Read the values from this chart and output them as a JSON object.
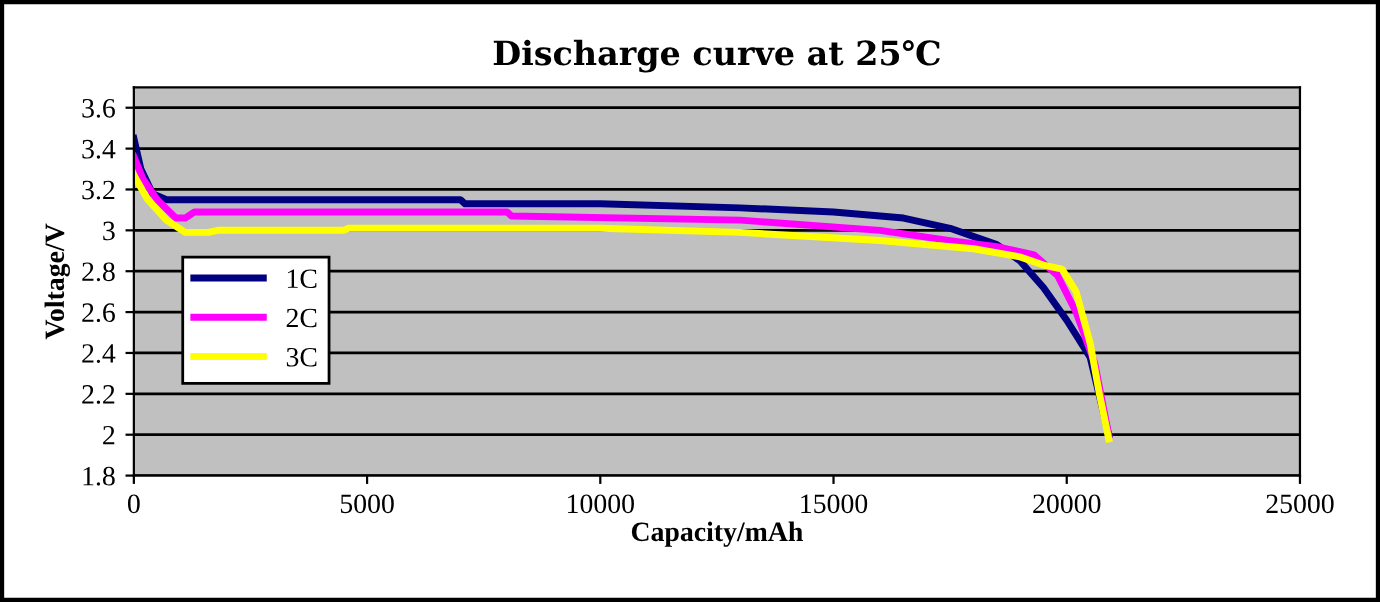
{
  "chart_data": {
    "type": "line",
    "title": "Discharge curve at 25℃",
    "xlabel": "Capacity/mAh",
    "ylabel": "Voltage/V",
    "xlim": [
      0,
      25000
    ],
    "xticks": [
      0,
      5000,
      10000,
      15000,
      20000,
      25000
    ],
    "ylim": [
      1.8,
      3.7
    ],
    "yticks": [
      1.8,
      2,
      2.2,
      2.4,
      2.6,
      2.8,
      3,
      3.2,
      3.4,
      3.6
    ],
    "grid": "y",
    "legend": "left",
    "marker": "none",
    "line_style": "solid",
    "series": [
      {
        "name": "1C",
        "color": "#000080",
        "x": [
          0,
          150,
          400,
          700,
          7000,
          7100,
          10000,
          13000,
          15000,
          16500,
          17500,
          18500,
          19000,
          19500,
          20000,
          20500,
          20900
        ],
        "values": [
          3.45,
          3.3,
          3.18,
          3.15,
          3.15,
          3.13,
          3.13,
          3.11,
          3.09,
          3.06,
          3.01,
          2.93,
          2.85,
          2.72,
          2.56,
          2.38,
          2.0
        ]
      },
      {
        "name": "2C",
        "color": "#ff00ff",
        "x": [
          0,
          200,
          500,
          900,
          1100,
          1300,
          8000,
          8100,
          13000,
          16000,
          17500,
          18500,
          19300,
          19800,
          20200,
          20600,
          20900
        ],
        "values": [
          3.36,
          3.25,
          3.15,
          3.06,
          3.06,
          3.09,
          3.09,
          3.07,
          3.05,
          3.0,
          2.95,
          2.92,
          2.88,
          2.78,
          2.6,
          2.35,
          2.0
        ]
      },
      {
        "name": "3C",
        "color": "#ffff00",
        "x": [
          0,
          300,
          700,
          1100,
          1600,
          1800,
          4500,
          4600,
          10000,
          13000,
          16000,
          18000,
          19000,
          19500,
          19900,
          20200,
          20500,
          20700,
          20900
        ],
        "values": [
          3.27,
          3.15,
          3.05,
          2.99,
          2.99,
          3.0,
          3.0,
          3.01,
          3.01,
          2.99,
          2.95,
          2.91,
          2.87,
          2.83,
          2.81,
          2.7,
          2.45,
          2.2,
          1.98
        ]
      }
    ]
  }
}
